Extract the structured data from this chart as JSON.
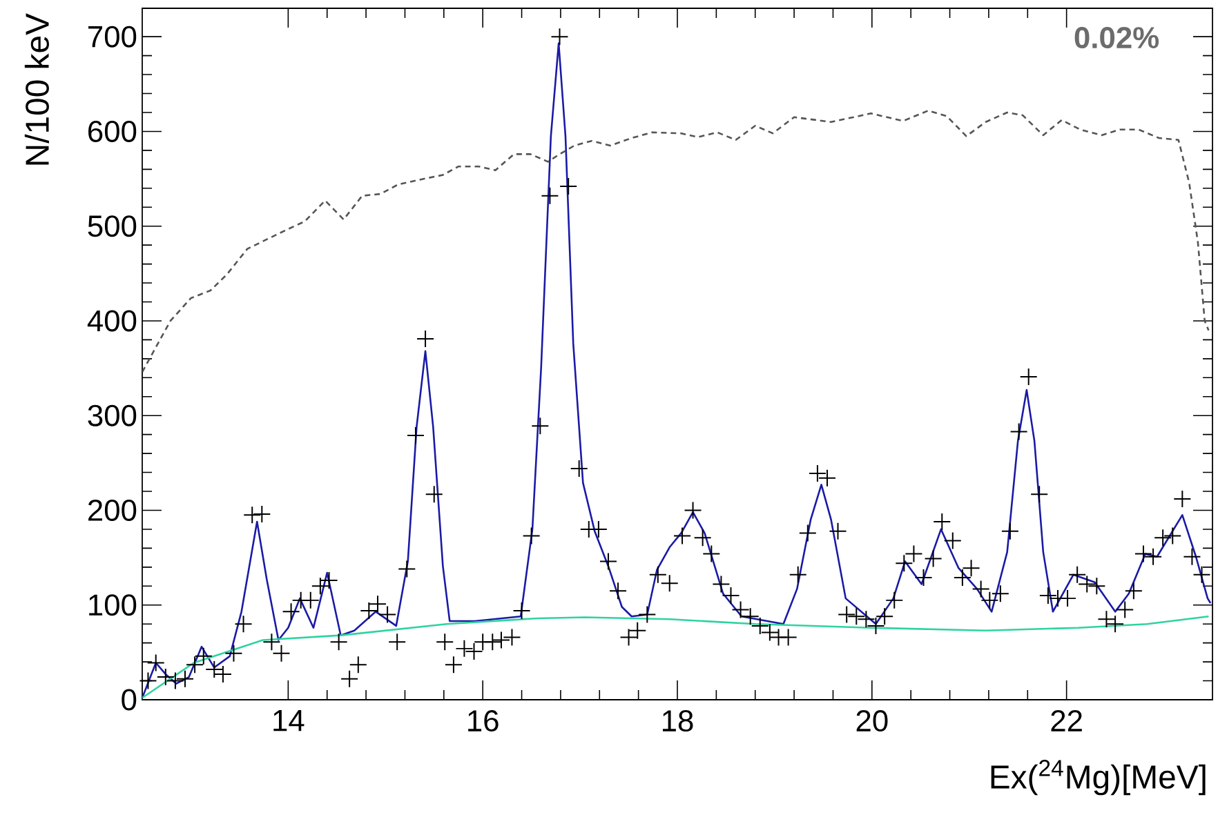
{
  "chart_data": {
    "type": "scatter",
    "xlabel": "Ex($^{24}$Mg)[MeV]",
    "ylabel": "N/100 keV",
    "annotations": [
      "0.02%"
    ],
    "xlim": [
      12.5,
      23.5
    ],
    "ylim": [
      0,
      730
    ],
    "xticks": [
      14,
      16,
      18,
      20,
      22
    ],
    "yticks": [
      0,
      100,
      200,
      300,
      400,
      500,
      600,
      700
    ],
    "grid": false,
    "series": [
      {
        "marker": "cross",
        "color": "#000000",
        "x": [
          12.56,
          12.64,
          12.74,
          12.84,
          12.94,
          13.04,
          13.13,
          13.24,
          13.33,
          13.44,
          13.54,
          13.63,
          13.73,
          13.83,
          13.93,
          14.03,
          14.13,
          14.23,
          14.33,
          14.42,
          14.52,
          14.63,
          14.72,
          14.83,
          14.92,
          15.02,
          15.12,
          15.22,
          15.31,
          15.41,
          15.5,
          15.61,
          15.7,
          15.81,
          15.91,
          16.0,
          16.1,
          16.19,
          16.3,
          16.4,
          16.5,
          16.59,
          16.69,
          16.79,
          16.88,
          16.99,
          17.09,
          17.19,
          17.29,
          17.39,
          17.5,
          17.59,
          17.69,
          17.8,
          17.92,
          18.05,
          18.16,
          18.26,
          18.35,
          18.45,
          18.55,
          18.65,
          18.75,
          18.85,
          18.95,
          19.04,
          19.14,
          19.24,
          19.34,
          19.44,
          19.54,
          19.65,
          19.74,
          19.84,
          19.94,
          20.04,
          20.13,
          20.23,
          20.33,
          20.43,
          20.53,
          20.63,
          20.72,
          20.83,
          20.93,
          21.02,
          21.12,
          21.21,
          21.32,
          21.42,
          21.51,
          21.61,
          21.72,
          21.81,
          21.91,
          22.01,
          22.11,
          22.21,
          22.31,
          22.41,
          22.5,
          22.6,
          22.69,
          22.79,
          22.89,
          22.99,
          23.09,
          23.19,
          23.29,
          23.39
        ],
        "values": [
          20,
          39,
          24,
          20,
          22,
          37,
          46,
          32,
          27,
          49,
          80,
          195,
          196,
          61,
          49,
          93,
          105,
          105,
          120,
          126,
          61,
          22,
          37,
          94,
          101,
          90,
          61,
          138,
          279,
          381,
          217,
          61,
          37,
          54,
          51,
          61,
          61,
          63,
          66,
          94,
          173,
          289,
          532,
          700,
          542,
          244,
          180,
          180,
          146,
          115,
          66,
          73,
          90,
          132,
          123,
          173,
          200,
          171,
          154,
          122,
          110,
          95,
          88,
          78,
          71,
          66,
          66,
          132,
          176,
          239,
          234,
          178,
          90,
          88,
          85,
          78,
          88,
          105,
          144,
          154,
          129,
          149,
          188,
          168,
          129,
          139,
          117,
          105,
          112,
          178,
          283,
          341,
          217,
          110,
          107,
          107,
          132,
          122,
          120,
          85,
          80,
          95,
          115,
          154,
          151,
          171,
          173,
          212,
          151,
          132
        ]
      },
      {
        "type": "line",
        "marker": "none",
        "color": "#1a1aa6",
        "line_style": "solid",
        "x": [
          12.5,
          12.64,
          12.74,
          12.85,
          12.98,
          13.11,
          13.24,
          13.4,
          13.52,
          13.68,
          13.78,
          13.9,
          14.0,
          14.12,
          14.26,
          14.4,
          14.54,
          14.68,
          14.9,
          15.11,
          15.23,
          15.32,
          15.41,
          15.49,
          15.59,
          15.66,
          15.92,
          16.39,
          16.51,
          16.6,
          16.7,
          16.78,
          16.85,
          16.93,
          17.03,
          17.15,
          17.29,
          17.43,
          17.53,
          17.69,
          17.79,
          17.92,
          18.04,
          18.16,
          18.28,
          18.47,
          18.66,
          19.09,
          19.23,
          19.37,
          19.48,
          19.58,
          19.73,
          20.04,
          20.22,
          20.34,
          20.51,
          20.71,
          20.89,
          21.08,
          21.23,
          21.39,
          21.5,
          21.59,
          21.67,
          21.76,
          21.86,
          22.07,
          22.29,
          22.5,
          22.64,
          22.81,
          22.93,
          23.19,
          23.33,
          23.45,
          23.48
        ],
        "values": [
          2,
          39,
          27,
          17,
          24,
          56,
          34,
          46,
          93,
          188,
          127,
          63,
          76,
          107,
          76,
          134,
          68,
          73,
          93,
          78,
          146,
          288,
          368,
          288,
          141,
          83,
          83,
          88,
          180,
          351,
          595,
          693,
          595,
          376,
          229,
          178,
          141,
          98,
          88,
          90,
          137,
          161,
          176,
          198,
          176,
          112,
          88,
          80,
          117,
          190,
          227,
          190,
          107,
          80,
          107,
          146,
          122,
          180,
          139,
          117,
          93,
          156,
          273,
          327,
          273,
          156,
          93,
          132,
          124,
          93,
          112,
          154,
          151,
          195,
          151,
          107,
          102
        ]
      },
      {
        "type": "line",
        "marker": "none",
        "color": "#2ed3a0",
        "line_style": "solid",
        "x": [
          12.5,
          13.03,
          13.74,
          14.54,
          15.63,
          16.57,
          17.05,
          17.92,
          18.8,
          19.99,
          21.17,
          22.12,
          22.83,
          23.46
        ],
        "values": [
          2,
          39,
          63,
          68,
          80,
          86,
          87,
          85,
          80,
          76,
          73,
          76,
          80,
          88
        ]
      },
      {
        "type": "line",
        "marker": "none",
        "color": "#555555",
        "line_style": "dashed",
        "x": [
          12.5,
          12.79,
          13.0,
          13.2,
          13.37,
          13.58,
          13.96,
          14.17,
          14.38,
          14.57,
          14.76,
          14.95,
          15.13,
          15.35,
          15.59,
          15.75,
          15.96,
          16.13,
          16.32,
          16.49,
          16.67,
          16.79,
          16.94,
          17.12,
          17.31,
          17.53,
          17.74,
          18.04,
          18.21,
          18.41,
          18.6,
          18.8,
          18.98,
          19.2,
          19.58,
          19.99,
          20.32,
          20.58,
          20.77,
          20.97,
          21.17,
          21.39,
          21.55,
          21.76,
          21.95,
          22.14,
          22.36,
          22.55,
          22.74,
          22.95,
          23.15,
          23.26,
          23.35,
          23.42,
          23.46
        ],
        "values": [
          346,
          400,
          424,
          432,
          449,
          476,
          495,
          505,
          527,
          507,
          532,
          534,
          544,
          549,
          554,
          563,
          563,
          559,
          576,
          576,
          568,
          576,
          585,
          590,
          585,
          593,
          599,
          598,
          594,
          599,
          591,
          606,
          598,
          615,
          610,
          619,
          611,
          622,
          616,
          595,
          610,
          620,
          617,
          596,
          612,
          602,
          596,
          602,
          602,
          593,
          591,
          546,
          483,
          400,
          390
        ]
      }
    ]
  }
}
